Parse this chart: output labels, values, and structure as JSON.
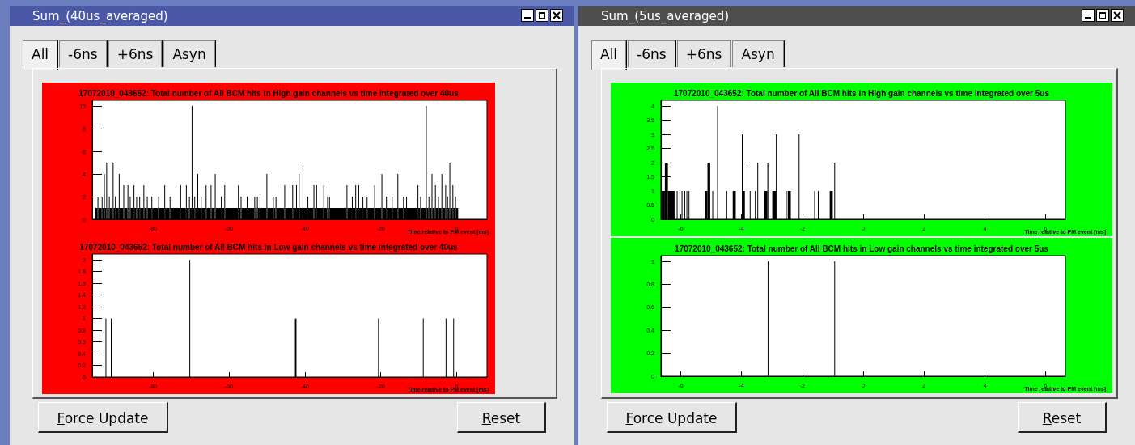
{
  "chart_data": [
    {
      "type": "other",
      "title": "Sum_(40us_averaged)",
      "annotations": [
        "All",
        "-6ns",
        "+6ns",
        "Asyn",
        "Force Update",
        "Reset"
      ]
    },
    {
      "type": "histogram",
      "title": "17072010_043652: Total number of All BCM hits in High gain channels vs time integrated over 40us",
      "xlabel": "Time relative to PM event [ms]",
      "color": "#000000",
      "bins": [
        -95.2,
        -94.6,
        -94.4,
        -93.5,
        -93.3,
        -92.9,
        -92.7,
        -92.3,
        -92.1,
        -91.6,
        -91.4,
        -90.6,
        -90.4,
        -90.0,
        -89.8,
        -89.0,
        -88.8,
        -87.8,
        -87.6,
        -86.7,
        -86.5,
        -86.1,
        -85.9,
        -85.1,
        -84.9,
        -84.4,
        -84.2,
        -83.6,
        -83.4,
        -82.5,
        -82.3,
        -81.6,
        -81.4,
        -80.4,
        -80.2,
        -78.6,
        -78.4,
        -77.0,
        -76.8,
        -75.6,
        -75.4,
        -72.8,
        -72.6,
        -71.3,
        -71.1,
        -70.5,
        -70.3,
        -69.8,
        -69.6,
        -69.1,
        -68.9,
        -68.3,
        -68.1,
        -67.4,
        -67.2,
        -66.1,
        -65.9,
        -64.8,
        -64.6,
        -63.7,
        -63.5,
        -62.1,
        -61.9,
        -61.2,
        -61.0,
        -57.6,
        -57.4,
        -56.9,
        -56.7,
        -55.3,
        -55.1,
        -53.3,
        -53.1,
        -52.6,
        -52.4,
        -51.9,
        -51.7,
        -50.1,
        -49.9,
        -48.4,
        -48.2,
        -47.7,
        -47.5,
        -45.4,
        -45.2,
        -43.3,
        -43.1,
        -42.3,
        -42.1,
        -41.6,
        -41.4,
        -40.6,
        -40.4,
        -39.3,
        -39.1,
        -37.7,
        -37.5,
        -37.0,
        -36.8,
        -35.1,
        -34.9,
        -34.1,
        -33.9,
        -33.6,
        -33.4,
        -29.0,
        -28.8,
        -27.6,
        -27.4,
        -26.7,
        -26.5,
        -25.9,
        -25.7,
        -24.8,
        -24.6,
        -23.7,
        -23.5,
        -21.7,
        -21.5,
        -19.8,
        -19.6,
        -18.6,
        -18.4,
        -17.1,
        -16.9,
        -15.6,
        -15.4,
        -14.1,
        -13.9,
        -13.3,
        -13.1,
        -10.3,
        -10.1,
        -9.6,
        -9.4,
        -8.1,
        -7.9,
        -7.4,
        -7.2,
        -6.6,
        -6.4,
        -5.7,
        -5.5,
        -4.9,
        -4.7,
        -4.0,
        -3.8,
        -3.0,
        -2.8,
        -2.5,
        -2.3,
        -1.9,
        -1.7,
        -1.1,
        -0.9,
        -0.4,
        -0.2,
        0.4
      ],
      "values": [
        1,
        2,
        1,
        2,
        1,
        4,
        1,
        5,
        1,
        2,
        1,
        5,
        1,
        2,
        1,
        4,
        1,
        3,
        1,
        3,
        1,
        2,
        1,
        3,
        1,
        2,
        1,
        2,
        1,
        3,
        1,
        2,
        1,
        2,
        1,
        2,
        1,
        3,
        1,
        2,
        1,
        3,
        1,
        3,
        1,
        2,
        1,
        10,
        1,
        2,
        1,
        4,
        1,
        2,
        1,
        3,
        1,
        3,
        1,
        4,
        1,
        2,
        1,
        3,
        1,
        3,
        1,
        2,
        1,
        2,
        1,
        2,
        1,
        2,
        1,
        2,
        1,
        4,
        1,
        2,
        1,
        2,
        1,
        3,
        1,
        3,
        1,
        3,
        1,
        4,
        1,
        5,
        1,
        2,
        1,
        3,
        1,
        3,
        1,
        3,
        1,
        2,
        1,
        2,
        1,
        3,
        1,
        2,
        1,
        3,
        1,
        3,
        1,
        2,
        1,
        2,
        1,
        3,
        1,
        4,
        1,
        2,
        1,
        2,
        1,
        4,
        1,
        2,
        1,
        2,
        1,
        3,
        1,
        2,
        1,
        10,
        1,
        2,
        1,
        4,
        1,
        3,
        1,
        2,
        1,
        4,
        1,
        3,
        1,
        2,
        1,
        5,
        1,
        3,
        1,
        2,
        1
      ],
      "xlim": [
        -96,
        8
      ],
      "xticks": [
        -80,
        -60,
        -40,
        -20,
        0
      ],
      "ylim": [
        0,
        10.5
      ],
      "yticks": [
        0,
        2,
        4,
        6,
        8,
        10
      ]
    },
    {
      "type": "histogram",
      "title": "17072010_043652: Total number of All BCM hits in Low gain channels vs time integrated over 40us",
      "xlabel": "Time relative to PM event [ms]",
      "color": "#000000",
      "bins": [
        -92.5,
        -92.3,
        -91.1,
        -90.9,
        -70.4,
        -70.2,
        -42.6,
        -42.2,
        -20.7,
        -20.5,
        -8.9,
        -8.7,
        -2.9,
        -2.7,
        -0.9,
        -0.7
      ],
      "values": [
        1,
        0,
        1,
        0,
        2,
        0,
        1,
        0,
        1,
        0,
        1,
        0,
        1,
        0,
        1
      ],
      "xlim": [
        -96,
        8
      ],
      "xticks": [
        -80,
        -60,
        -40,
        -20,
        0
      ],
      "ylim": [
        0,
        2.1
      ],
      "yticks": [
        0,
        0.2,
        0.4,
        0.6,
        0.8,
        1,
        1.2,
        1.4,
        1.6,
        1.8,
        2
      ]
    },
    {
      "type": "other",
      "title": "Sum_(5us_averaged)",
      "annotations": [
        "All",
        "-6ns",
        "+6ns",
        "Asyn",
        "Force Update",
        "Reset"
      ]
    },
    {
      "type": "histogram",
      "title": "17072010_043652: Total number of All BCM hits in High gain channels vs time integrated over 5us",
      "xlabel": "Time relative to PM event [ms]",
      "color": "#000000",
      "bins": [
        -6.65,
        -6.52,
        -6.42,
        -6.2,
        -6.13,
        -6.11,
        -6.04,
        -6.02,
        -5.97,
        -5.95,
        -5.88,
        -5.86,
        -5.81,
        -5.79,
        -5.74,
        -5.72,
        -5.2,
        -5.12,
        -5.03,
        -4.96,
        -4.94,
        -4.8,
        -4.78,
        -4.5,
        -4.48,
        -4.29,
        -4.19,
        -3.99,
        -3.97,
        -3.89,
        -3.83,
        -3.81,
        -3.73,
        -3.71,
        -3.56,
        -3.54,
        -3.48,
        -3.46,
        -3.25,
        -3.15,
        -3.12,
        -2.99,
        -2.87,
        -2.85,
        -2.54,
        -2.52,
        -2.48,
        -2.38,
        -2.12,
        -2.1,
        -1.61,
        -1.59,
        -1.49,
        -1.47,
        -1.1,
        -1.0,
        -0.95,
        -0.93
      ],
      "values": [
        1,
        2,
        1,
        0,
        1,
        0,
        1,
        0,
        1,
        0,
        1,
        0,
        1,
        0,
        1,
        0,
        1,
        2,
        0,
        1,
        0,
        4,
        0,
        1,
        0,
        1,
        0,
        3,
        1,
        0,
        2,
        0,
        1,
        0,
        1,
        0,
        2,
        0,
        1,
        2,
        0,
        1,
        3,
        0,
        1,
        0,
        1,
        0,
        3,
        0,
        1,
        0,
        1,
        0,
        1,
        0,
        2
      ],
      "xlim": [
        -6.65,
        6.65
      ],
      "xticks": [
        -6,
        -4,
        -2,
        0,
        2,
        4,
        6
      ],
      "ylim": [
        0,
        4.2
      ],
      "yticks": [
        0,
        0.5,
        1,
        1.5,
        2,
        2.5,
        3,
        3.5,
        4
      ]
    },
    {
      "type": "histogram",
      "title": "17072010_043652: Total number of All BCM hits in Low gain channels vs time integrated over 5us",
      "xlabel": "Time relative to PM event [ms]",
      "color": "#000000",
      "bins": [
        -3.14,
        -3.12,
        -0.95,
        -0.93
      ],
      "values": [
        1,
        0,
        1
      ],
      "xlim": [
        -6.65,
        6.65
      ],
      "xticks": [
        -6,
        -4,
        -2,
        0,
        2,
        4,
        6
      ],
      "ylim": [
        0,
        1.05
      ],
      "yticks": [
        0,
        0.2,
        0.4,
        0.6,
        0.8,
        1
      ]
    }
  ]
}
